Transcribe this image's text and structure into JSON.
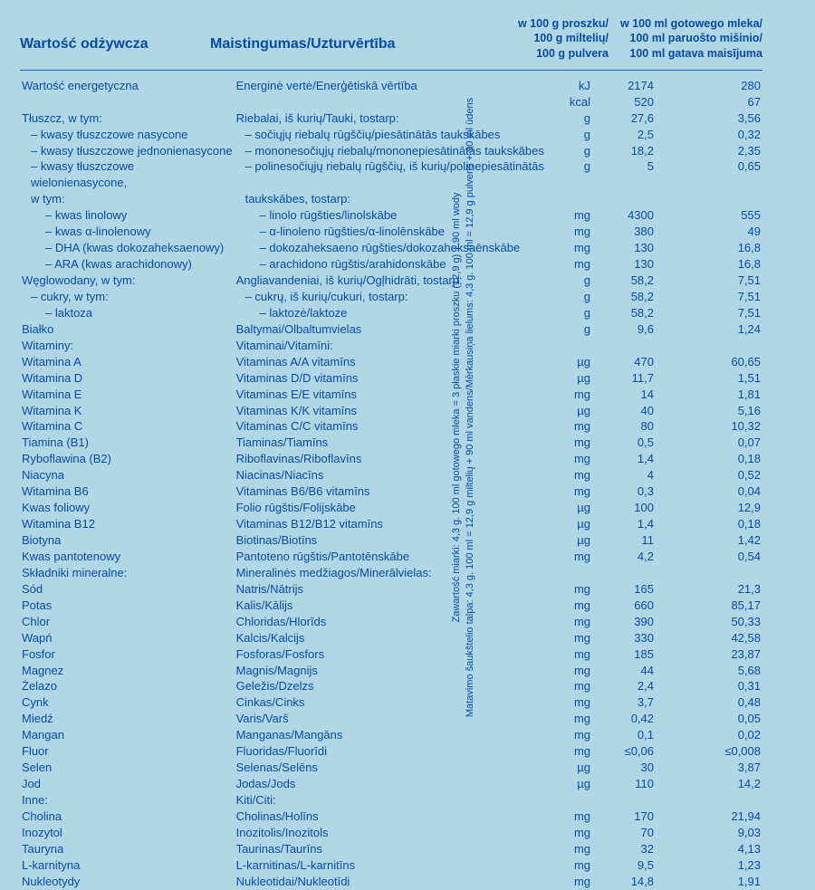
{
  "colors": {
    "bg": "#afd7e6",
    "text": "#0b4aa2",
    "rule": "#1e5fae"
  },
  "header": {
    "c1": "Wartość odżywcza",
    "c2": "Maistingumas/Uzturvērtība",
    "c3": "w 100 g proszku/\n100 g miltelių/\n100 g pulvera",
    "c4": "w 100 ml gotowego mleka/\n100 ml paruošto mišinio/\n100 ml gatava maisījuma"
  },
  "rows": [
    {
      "pl": "Wartość energetyczna",
      "alt": "Energinė vertė/Enerģētiskā vērtība",
      "u": "kJ",
      "v1": "2174",
      "v2": "280"
    },
    {
      "pl": "",
      "alt": "",
      "u": "kcal",
      "v1": "520",
      "v2": "67"
    },
    {
      "pl": "Tłuszcz, w tym:",
      "alt": "Riebalai, iš kurių/Tauki, tostarp:",
      "u": "g",
      "v1": "27,6",
      "v2": "3,56"
    },
    {
      "pl": "– kwasy tłuszczowe nasycone",
      "alt": "– sočiųjų riebalų rūgščių/piesātinātās taukskābes",
      "u": "g",
      "v1": "2,5",
      "v2": "0,32",
      "ind": 1
    },
    {
      "pl": "– kwasy tłuszczowe jednonienasycone",
      "alt": "– mononesočiųjų riebalų/mononepiesātinātās taukskābes",
      "u": "g",
      "v1": "18,2",
      "v2": "2,35",
      "ind": 1
    },
    {
      "pl": "– kwasy tłuszczowe wielonienasycone,",
      "alt": "– polinesočiųjų riebalų rūgščių, iš kurių/polinepiesātinātās",
      "u": "g",
      "v1": "5",
      "v2": "0,65",
      "ind": 1,
      "wrap": true
    },
    {
      "pl": "   w tym:",
      "alt": "   taukskābes, tostarp:",
      "u": "",
      "v1": "",
      "v2": "",
      "ind": 1
    },
    {
      "pl": "– kwas linolowy",
      "alt": "– linolo rūgšties/linolskābe",
      "u": "mg",
      "v1": "4300",
      "v2": "555",
      "ind": 2
    },
    {
      "pl": "– kwas α-linolenowy",
      "alt": "– α-linoleno rūgšties/α-linolēnskābe",
      "u": "mg",
      "v1": "380",
      "v2": "49",
      "ind": 2
    },
    {
      "pl": "– DHA (kwas dokozaheksaenowy)",
      "alt": "– dokozaheksaeno rūgšties/dokozaheksaēnskābe",
      "u": "mg",
      "v1": "130",
      "v2": "16,8",
      "ind": 2
    },
    {
      "pl": "– ARA (kwas arachidonowy)",
      "alt": "– arachidono rūgštis/arahidonskābe",
      "u": "mg",
      "v1": "130",
      "v2": "16,8",
      "ind": 2
    },
    {
      "pl": "Węglowodany, w tym:",
      "alt": "Angliavandeniai, iš kurių/Ogļhidrāti, tostarp:",
      "u": "g",
      "v1": "58,2",
      "v2": "7,51"
    },
    {
      "pl": "– cukry, w tym:",
      "alt": "– cukrų, iš kurių/cukuri, tostarp:",
      "u": "g",
      "v1": "58,2",
      "v2": "7,51",
      "ind": 1
    },
    {
      "pl": "– laktoza",
      "alt": "– laktozė/laktoze",
      "u": "g",
      "v1": "58,2",
      "v2": "7,51",
      "ind": 2
    },
    {
      "pl": "Białko",
      "alt": "Baltymai/Olbaltumvielas",
      "u": "g",
      "v1": "9,6",
      "v2": "1,24"
    },
    {
      "pl": "Witaminy:",
      "alt": "Vitaminai/Vitamīni:",
      "u": "",
      "v1": "",
      "v2": ""
    },
    {
      "pl": "Witamina A",
      "alt": "Vitaminas A/A vitamīns",
      "u": "µg",
      "v1": "470",
      "v2": "60,65"
    },
    {
      "pl": "Witamina D",
      "alt": "Vitaminas D/D vitamīns",
      "u": "µg",
      "v1": "11,7",
      "v2": "1,51"
    },
    {
      "pl": "Witamina E",
      "alt": "Vitaminas E/E vitamīns",
      "u": "mg",
      "v1": "14",
      "v2": "1,81"
    },
    {
      "pl": "Witamina K",
      "alt": "Vitaminas K/K vitamīns",
      "u": "µg",
      "v1": "40",
      "v2": "5,16"
    },
    {
      "pl": "Witamina C",
      "alt": "Vitaminas C/C vitamīns",
      "u": "mg",
      "v1": "80",
      "v2": "10,32"
    },
    {
      "pl": "Tiamina (B1)",
      "alt": "Tiaminas/Tiamīns",
      "u": "mg",
      "v1": "0,5",
      "v2": "0,07"
    },
    {
      "pl": "Ryboflawina (B2)",
      "alt": "Riboflavinas/Riboflavīns",
      "u": "mg",
      "v1": "1,4",
      "v2": "0,18"
    },
    {
      "pl": "Niacyna",
      "alt": "Niacinas/Niacīns",
      "u": "mg",
      "v1": "4",
      "v2": "0,52"
    },
    {
      "pl": "Witamina B6",
      "alt": "Vitaminas B6/B6 vitamīns",
      "u": "mg",
      "v1": "0,3",
      "v2": "0,04"
    },
    {
      "pl": "Kwas foliowy",
      "alt": "Folio rūgštis/Folijskābe",
      "u": "µg",
      "v1": "100",
      "v2": "12,9"
    },
    {
      "pl": "Witamina B12",
      "alt": "Vitaminas B12/B12 vitamīns",
      "u": "µg",
      "v1": "1,4",
      "v2": "0,18"
    },
    {
      "pl": "Biotyna",
      "alt": "Biotinas/Biotīns",
      "u": "µg",
      "v1": "11",
      "v2": "1,42"
    },
    {
      "pl": "Kwas pantotenowy",
      "alt": "Pantoteno rūgštis/Pantotēnskābe",
      "u": "mg",
      "v1": "4,2",
      "v2": "0,54"
    },
    {
      "pl": "Składniki mineralne:",
      "alt": "Mineralinės medžiagos/Minerālvielas:",
      "u": "",
      "v1": "",
      "v2": ""
    },
    {
      "pl": "Sód",
      "alt": "Natris/Nātrijs",
      "u": "mg",
      "v1": "165",
      "v2": "21,3"
    },
    {
      "pl": "Potas",
      "alt": "Kalis/Kālijs",
      "u": "mg",
      "v1": "660",
      "v2": "85,17"
    },
    {
      "pl": "Chlor",
      "alt": "Chloridas/Hlorīds",
      "u": "mg",
      "v1": "390",
      "v2": "50,33"
    },
    {
      "pl": "Wapń",
      "alt": "Kalcis/Kalcijs",
      "u": "mg",
      "v1": "330",
      "v2": "42,58"
    },
    {
      "pl": "Fosfor",
      "alt": "Fosforas/Fosfors",
      "u": "mg",
      "v1": "185",
      "v2": "23,87"
    },
    {
      "pl": "Magnez",
      "alt": "Magnis/Magnijs",
      "u": "mg",
      "v1": "44",
      "v2": "5,68"
    },
    {
      "pl": "Żelazo",
      "alt": "Geležis/Dzelzs",
      "u": "mg",
      "v1": "2,4",
      "v2": "0,31"
    },
    {
      "pl": "Cynk",
      "alt": "Cinkas/Cinks",
      "u": "mg",
      "v1": "3,7",
      "v2": "0,48"
    },
    {
      "pl": "Miedź",
      "alt": "Varis/Varš",
      "u": "mg",
      "v1": "0,42",
      "v2": "0,05"
    },
    {
      "pl": "Mangan",
      "alt": "Manganas/Mangāns",
      "u": "mg",
      "v1": "0,1",
      "v2": "0,02"
    },
    {
      "pl": "Fluor",
      "alt": "Fluoridas/Fluorīdi",
      "u": "mg",
      "v1": "≤0,06",
      "v2": "≤0,008"
    },
    {
      "pl": "Selen",
      "alt": "Selenas/Selēns",
      "u": "µg",
      "v1": "30",
      "v2": "3,87"
    },
    {
      "pl": "Jod",
      "alt": "Jodas/Jods",
      "u": "µg",
      "v1": "110",
      "v2": "14,2"
    },
    {
      "pl": "Inne:",
      "alt": "Kiti/Citi:",
      "u": "",
      "v1": "",
      "v2": ""
    },
    {
      "pl": "Cholina",
      "alt": "Cholinas/Holīns",
      "u": "mg",
      "v1": "170",
      "v2": "21,94"
    },
    {
      "pl": "Inozytol",
      "alt": "Inozitolis/Inozitols",
      "u": "mg",
      "v1": "70",
      "v2": "9,03"
    },
    {
      "pl": "Tauryna",
      "alt": "Taurinas/Taurīns",
      "u": "mg",
      "v1": "32",
      "v2": "4,13"
    },
    {
      "pl": "L-karnityna",
      "alt": "L-karnitinas/L-karnitīns",
      "u": "mg",
      "v1": "9,5",
      "v2": "1,23"
    },
    {
      "pl": "Nukleotydy",
      "alt": "Nukleotidai/Nukleotīdi",
      "u": "mg",
      "v1": "14,8",
      "v2": "1,91"
    }
  ],
  "sidenote": "Zawartość miarki: 4,3 g. 100 ml gotowego mleka = 3 płaskie miarki proszku (12,9 g) + 90 ml wody\nMatavimo šaukštelio talpa: 4,3 g. 100 ml = 12,9 g miltelių + 90 ml vandens/Mērkausiņa lielums: 4,3 g. 100 ml = 12,9 g pulveris + 90 ml ūdens"
}
